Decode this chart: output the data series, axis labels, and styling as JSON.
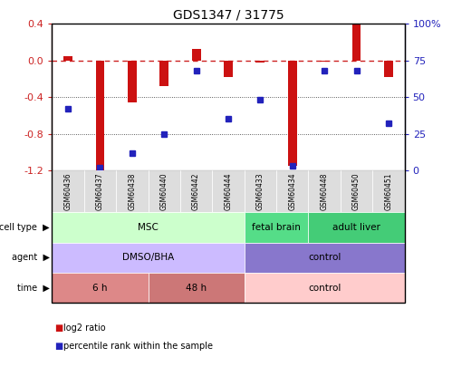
{
  "title": "GDS1347 / 31775",
  "samples": [
    "GSM60436",
    "GSM60437",
    "GSM60438",
    "GSM60440",
    "GSM60442",
    "GSM60444",
    "GSM60433",
    "GSM60434",
    "GSM60448",
    "GSM60450",
    "GSM60451"
  ],
  "log2_ratio": [
    0.05,
    -1.22,
    -0.46,
    -0.28,
    0.13,
    -0.18,
    -0.02,
    -1.15,
    -0.01,
    0.4,
    -0.18
  ],
  "percentile_rank": [
    42,
    2,
    12,
    25,
    68,
    35,
    48,
    3,
    68,
    68,
    32
  ],
  "ylim_left": [
    -1.2,
    0.4
  ],
  "ylim_right": [
    0,
    100
  ],
  "yticks_left": [
    -1.2,
    -0.8,
    -0.4,
    0.0,
    0.4
  ],
  "yticks_right": [
    0,
    25,
    50,
    75,
    100
  ],
  "bar_color": "#cc1111",
  "dot_color": "#2222bb",
  "hline_color": "#cc2222",
  "grid_color": "#333333",
  "cell_type_segments": [
    {
      "text": "MSC",
      "start": 0,
      "end": 5,
      "color": "#ccffcc"
    },
    {
      "text": "fetal brain",
      "start": 6,
      "end": 7,
      "color": "#55dd88"
    },
    {
      "text": "adult liver",
      "start": 8,
      "end": 10,
      "color": "#44cc77"
    }
  ],
  "agent_segments": [
    {
      "text": "DMSO/BHA",
      "start": 0,
      "end": 5,
      "color": "#ccbbff"
    },
    {
      "text": "control",
      "start": 6,
      "end": 10,
      "color": "#8877cc"
    }
  ],
  "time_segments": [
    {
      "text": "6 h",
      "start": 0,
      "end": 2,
      "color": "#dd8888"
    },
    {
      "text": "48 h",
      "start": 3,
      "end": 5,
      "color": "#cc7777"
    },
    {
      "text": "control",
      "start": 6,
      "end": 10,
      "color": "#ffcccc"
    }
  ],
  "legend_items": [
    {
      "label": "log2 ratio",
      "color": "#cc1111"
    },
    {
      "label": "percentile rank within the sample",
      "color": "#2222bb"
    }
  ]
}
